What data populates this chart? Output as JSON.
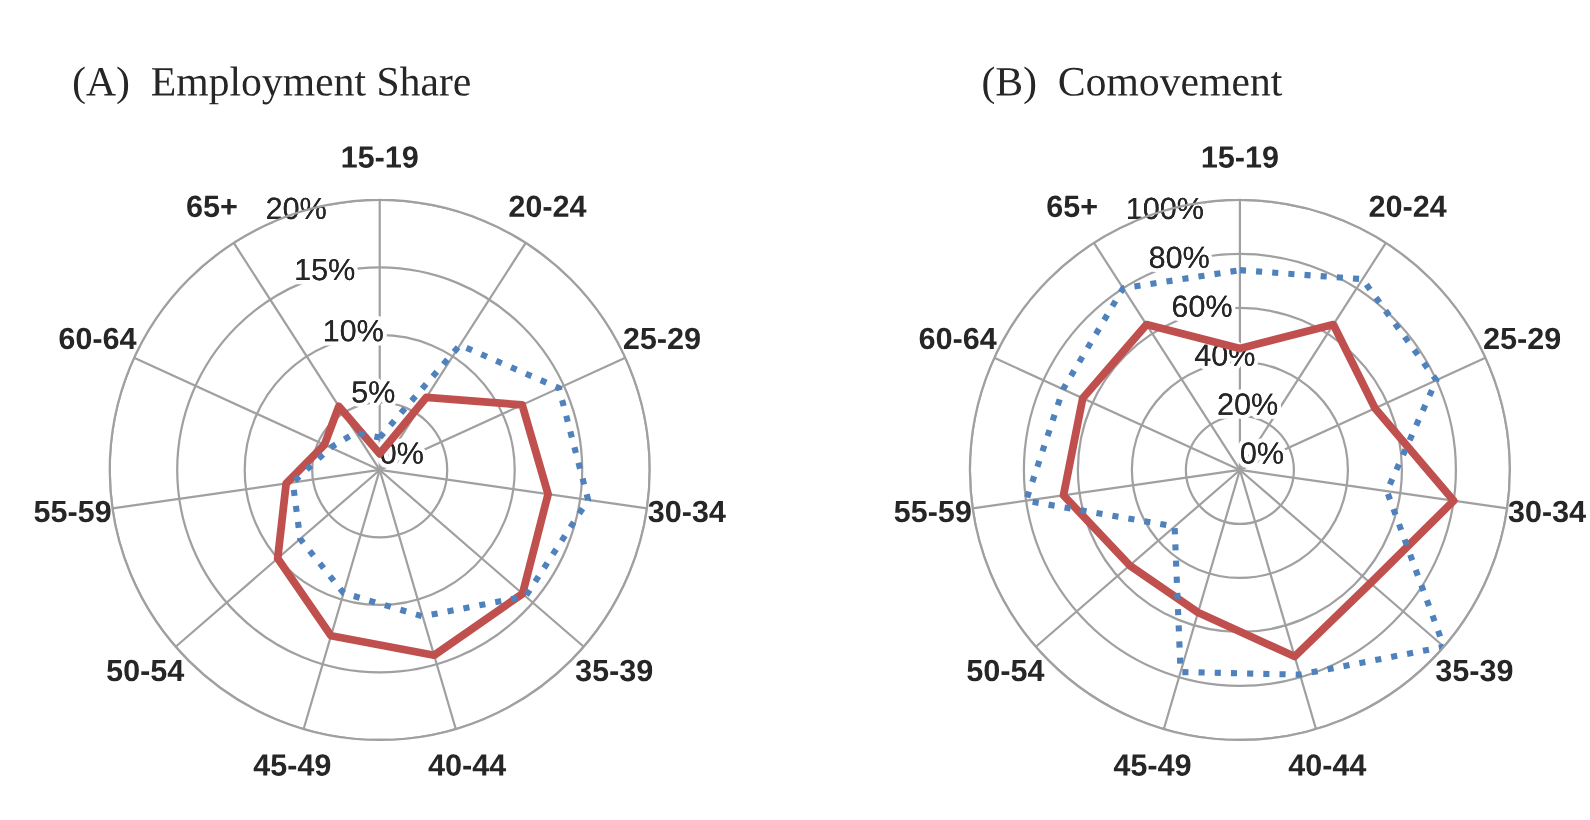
{
  "chart_data": [
    {
      "type": "radar",
      "title": "(A)  Employment Share",
      "categories": [
        "15-19",
        "20-24",
        "25-29",
        "30-34",
        "35-39",
        "40-44",
        "45-49",
        "50-54",
        "55-59",
        "60-64",
        "65+"
      ],
      "ylim": [
        0,
        20
      ],
      "yticks": [
        {
          "value": 0,
          "label": "0%"
        },
        {
          "value": 5,
          "label": "5%"
        },
        {
          "value": 10,
          "label": "10%"
        },
        {
          "value": 15,
          "label": "15%"
        },
        {
          "value": 20,
          "label": "20%"
        }
      ],
      "grid": true,
      "series": [
        {
          "color": "#c0504d",
          "line_style": "solid",
          "values": [
            1.2,
            6.4,
            11.6,
            12.6,
            14.0,
            14.3,
            12.8,
            10.0,
            7.0,
            4.5,
            5.6
          ]
        },
        {
          "color": "#4f81bd",
          "line_style": "dotted",
          "values": [
            2.4,
            11.0,
            14.6,
            15.6,
            14.3,
            11.3,
            9.5,
            7.8,
            6.5,
            4.0,
            3.3
          ]
        }
      ]
    },
    {
      "type": "radar",
      "title": "(B)  Comovement",
      "categories": [
        "15-19",
        "20-24",
        "25-29",
        "30-34",
        "35-39",
        "40-44",
        "45-49",
        "50-54",
        "55-59",
        "60-64",
        "65+"
      ],
      "ylim": [
        0,
        100
      ],
      "yticks": [
        {
          "value": 0,
          "label": "0%"
        },
        {
          "value": 20,
          "label": "20%"
        },
        {
          "value": 40,
          "label": "40%"
        },
        {
          "value": 60,
          "label": "60%"
        },
        {
          "value": 80,
          "label": "80%"
        },
        {
          "value": 100,
          "label": "100%"
        }
      ],
      "grid": true,
      "series": [
        {
          "color": "#c0504d",
          "line_style": "solid",
          "values": [
            45,
            64,
            55,
            80,
            64,
            72,
            55,
            54,
            66,
            64,
            64
          ]
        },
        {
          "color": "#4f81bd",
          "line_style": "dotted",
          "values": [
            74,
            84,
            80,
            55,
            100,
            79,
            78,
            32,
            80,
            72,
            80
          ]
        }
      ]
    }
  ]
}
